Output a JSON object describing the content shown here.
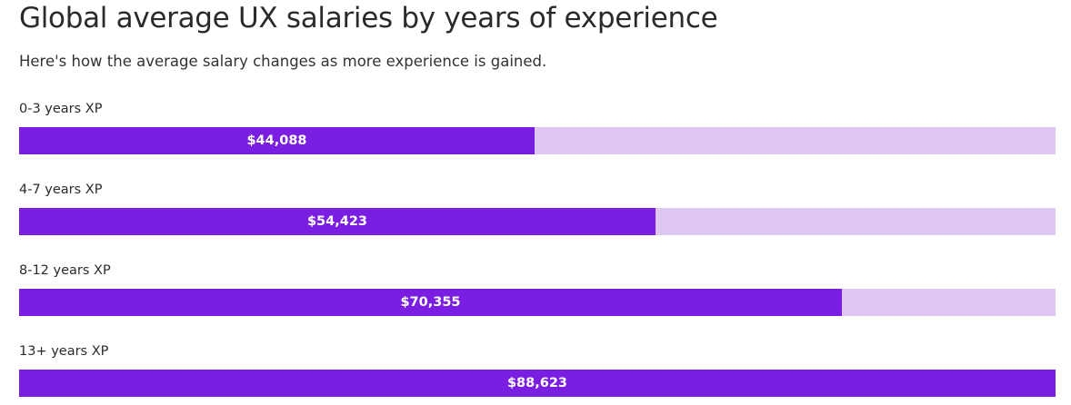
{
  "title": "Global average UX salaries by years of experience",
  "subtitle": "Here's how the average salary changes as more experience is gained.",
  "colors": {
    "bar": "#7a1ee2",
    "track": "#dec6f5"
  },
  "chart_data": {
    "type": "bar",
    "orientation": "horizontal",
    "title": "Global average UX salaries by years of experience",
    "subtitle": "Here's how the average salary changes as more experience is gained.",
    "categories": [
      "0-3 years XP",
      "4-7 years XP",
      "8-12 years XP",
      "13+ years XP"
    ],
    "values": [
      44088,
      54423,
      70355,
      88623
    ],
    "value_labels": [
      "$44,088",
      "$54,423",
      "$70,355",
      "$88,623"
    ],
    "xlim": [
      0,
      88623
    ],
    "grid": false,
    "legend": "none"
  }
}
